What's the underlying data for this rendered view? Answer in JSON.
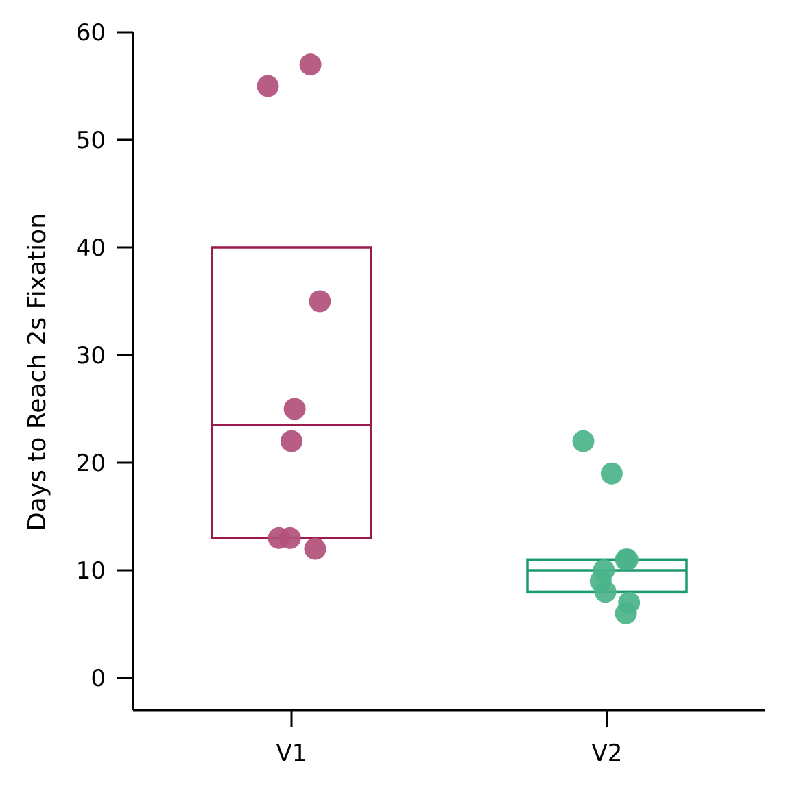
{
  "chart_data": {
    "type": "box-strip",
    "title": "",
    "xlabel": "",
    "ylabel": "Days to Reach 2s Fixation",
    "ylim": [
      -3,
      60
    ],
    "yticks": [
      0,
      10,
      20,
      30,
      40,
      50,
      60
    ],
    "grid": false,
    "categories": [
      "V1",
      "V2"
    ],
    "series": [
      {
        "category": "V1",
        "color": "#9b1b4e",
        "point_color": "#b2507a",
        "box": {
          "q1": 13,
          "median": 23.5,
          "q3": 40
        },
        "points": [
          55,
          57,
          35,
          25,
          22,
          13,
          13,
          12
        ],
        "jitter": [
          -0.15,
          0.12,
          0.18,
          0.02,
          0.0,
          -0.08,
          -0.01,
          0.15
        ]
      },
      {
        "category": "V2",
        "color": "#1b9a6c",
        "point_color": "#4bb38a",
        "box": {
          "q1": 8,
          "median": 10,
          "q3": 11
        },
        "points": [
          22,
          19,
          11,
          11,
          10,
          9,
          8,
          7,
          6
        ],
        "jitter": [
          -0.15,
          0.03,
          0.12,
          0.13,
          -0.02,
          -0.04,
          -0.01,
          0.14,
          0.12
        ]
      }
    ]
  }
}
